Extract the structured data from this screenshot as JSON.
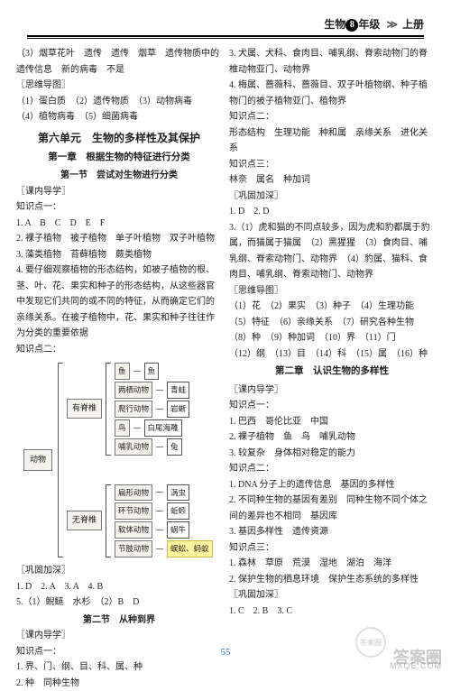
{
  "header": {
    "subject": "生物",
    "grade": "8",
    "grade_suffix": "年级",
    "volume": "上册"
  },
  "left": {
    "p1": "（3）烟草花叶　遗传　遗传　烟草　遗传物质中的遗传信息　新的病毒　不是",
    "lbl_mind": "〖思维导图〗",
    "mind1": "（1）蛋白质　（2）遗传物质　（3）动物病毒",
    "mind2": "（4）植物病毒　（5）细菌病毒",
    "unit": "第六单元　生物的多样性及其保护",
    "chapter1": "第一章　根据生物的特征进行分类",
    "section1": "第一节　尝试对生物进行分类",
    "lbl_guide": "〖课内导学〗",
    "k1": "知识点一：",
    "k1a": "1. A　B　C　D　E　F",
    "k1b": "2. 裸子植物　被子植物　单子叶植物　双子叶植物",
    "k1c": "3. 藻类植物　苔藓植物　蕨类植物",
    "k1d": "4. 要仔细观察植物的形态结构，如被子植物的根、茎、叶、花、果实和种子的形态结构，从这些器官中发现它们共同的或不同的特征，从而确定它们的亲缘关系。在被子植物中，花、果实和种子往往作为分类的重要依据",
    "k2": "知识点二：",
    "tree": {
      "root": "动物",
      "groups": [
        {
          "label": "有脊椎",
          "items": [
            {
              "t": "鱼",
              "e": "鱼"
            },
            {
              "t": "两栖动物",
              "e": "青蛙"
            },
            {
              "t": "爬行动物",
              "e": "岩蜥"
            },
            {
              "t": "鸟",
              "e": "白尾海雕"
            },
            {
              "t": "哺乳动物",
              "e": "兔"
            }
          ]
        },
        {
          "label": "无脊椎",
          "items": [
            {
              "t": "扁形动物",
              "e": "涡虫"
            },
            {
              "t": "环节动物",
              "e": "蚯蚓"
            },
            {
              "t": "软体动物",
              "e": "蜗牛"
            },
            {
              "t": "节肢动物",
              "e": "蜈蚣、蚂蚁",
              "hl": true
            }
          ]
        }
      ]
    },
    "lbl_deep": "〖巩固加深〗",
    "deep1": "1. D　2. A　3. A　4. B",
    "deep2": "5.（1）鲵鲢　水杉　（2）B　D",
    "section2": "第二节　从种到界",
    "lbl_guide2": "〖课内导学〗",
    "k1b_label": "知识点一：",
    "k1b1": "1. 界、门、纲、目、科、属、种",
    "k1b2": "2. 种　同种生物"
  },
  "right": {
    "r1": "3. 犬属、犬科、食肉目、哺乳纲、脊索动物门的脊椎动物亚门、动物界",
    "r2": "4. 梅属、蔷薇科、蔷薇目、双子叶植物纲、种子植物门的被子植物亚门、植物界",
    "k2": "知识点二：",
    "r3": "形态结构　生理功能　种和属　亲缘关系　进化关系",
    "k3": "知识点三：",
    "r4": "林奈　属名　种加词",
    "lbl_deep": "〖巩固加深〗",
    "d1": "1. D　2. D",
    "d2": "3.（1）虎和猫的不同点较多，因为虎和豹都属于豹属，而猫属于猫属　（2）黑猩猩　（3）食肉目、哺乳纲、脊索动物门、动物界　（4）豹属、猫科、食肉目、哺乳纲、脊索动物门、动物界",
    "lbl_mind": "〖思维导图〗",
    "m1": "（1）花　（2）果实　（3）种子　（4）生理功能",
    "m2": "（5）特征　（6）亲缘关系　（7）研究各种生物",
    "m3": "（8）种　（9）种加词　（10）界　（11）门",
    "m4": "（12）纲　（13）目　（14）科　（15）属　（16）种",
    "chapter2": "第二章　认识生物的多样性",
    "lbl_guide": "〖课内导学〗",
    "rk1": "知识点一：",
    "rk1a": "1. 巴西　哥伦比亚　中国",
    "rk1b": "2. 裸子植物　鱼　鸟　哺乳动物",
    "rk1c": "3. 较复杂　身体相对稳定的能力",
    "rk2": "知识点二：",
    "rk2a": "1. DNA 分子上的遗传信息　基因的多样性",
    "rk2b": "2. 不同种生物的基因有差别　同种生物不同个体之间的差异也不相同　基因库",
    "rk2c": "3. 基因多样性　遗传资源",
    "rk3": "知识点三：",
    "rk3a": "1. 森林　草原　荒漠　湿地　湖泊　海洋",
    "rk3b": "2. 保护生物的栖息环境　保护生态系统的多样性",
    "lbl_deep2": "〖巩固加深〗",
    "last": "1. C　2. B　3. C"
  },
  "page": "55"
}
